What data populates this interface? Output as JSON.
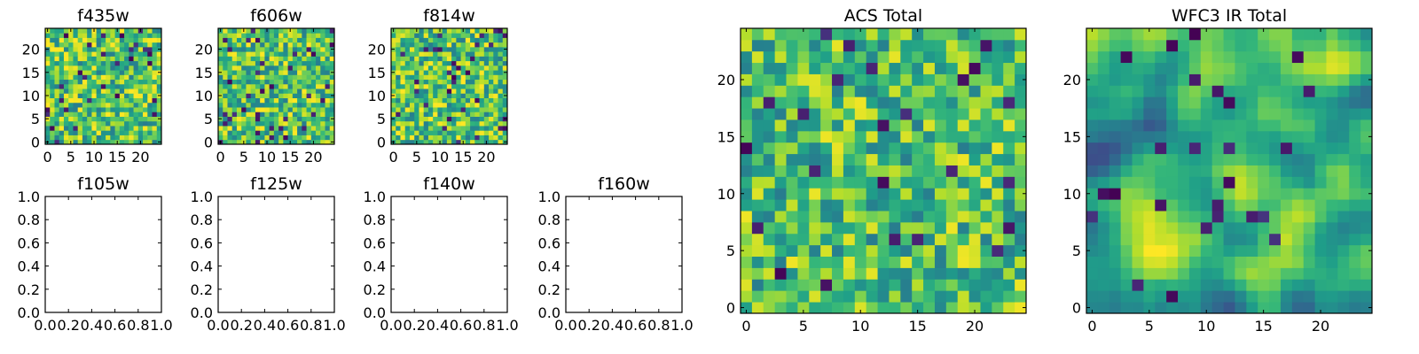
{
  "chart_data": [
    {
      "type": "heatmap",
      "title": "f435w",
      "xlim": [
        -0.5,
        24.5
      ],
      "ylim": [
        -0.5,
        24.5
      ],
      "xticks": [
        "0",
        "5",
        "10",
        "15",
        "20"
      ],
      "yticks": [
        "0",
        "5",
        "10",
        "15",
        "20"
      ],
      "colormap": "viridis",
      "seed": 11,
      "mean": 0.72,
      "spread": 0.3,
      "smooth": 0,
      "dark_fraction": 0.05
    },
    {
      "type": "heatmap",
      "title": "f606w",
      "xlim": [
        -0.5,
        24.5
      ],
      "ylim": [
        -0.5,
        24.5
      ],
      "xticks": [
        "0",
        "5",
        "10",
        "15",
        "20"
      ],
      "yticks": [
        "0",
        "5",
        "10",
        "15",
        "20"
      ],
      "colormap": "viridis",
      "seed": 23,
      "mean": 0.72,
      "spread": 0.3,
      "smooth": 0,
      "dark_fraction": 0.05
    },
    {
      "type": "heatmap",
      "title": "f814w",
      "xlim": [
        -0.5,
        24.5
      ],
      "ylim": [
        -0.5,
        24.5
      ],
      "xticks": [
        "0",
        "5",
        "10",
        "15",
        "20"
      ],
      "yticks": [
        "0",
        "5",
        "10",
        "15",
        "20"
      ],
      "colormap": "viridis",
      "seed": 37,
      "mean": 0.72,
      "spread": 0.3,
      "smooth": 0,
      "dark_fraction": 0.05
    },
    {
      "type": "line",
      "title": "f105w",
      "series": [],
      "xlim": [
        0.0,
        1.0
      ],
      "ylim": [
        0.0,
        1.0
      ],
      "xticks": [
        "0.0",
        "0.2",
        "0.4",
        "0.6",
        "0.8",
        "1.0"
      ],
      "yticks": [
        "0.0",
        "0.2",
        "0.4",
        "0.6",
        "0.8",
        "1.0"
      ]
    },
    {
      "type": "line",
      "title": "f125w",
      "series": [],
      "xlim": [
        0.0,
        1.0
      ],
      "ylim": [
        0.0,
        1.0
      ],
      "xticks": [
        "0.0",
        "0.2",
        "0.4",
        "0.6",
        "0.8",
        "1.0"
      ],
      "yticks": [
        "0.0",
        "0.2",
        "0.4",
        "0.6",
        "0.8",
        "1.0"
      ]
    },
    {
      "type": "line",
      "title": "f140w",
      "series": [],
      "xlim": [
        0.0,
        1.0
      ],
      "ylim": [
        0.0,
        1.0
      ],
      "xticks": [
        "0.0",
        "0.2",
        "0.4",
        "0.6",
        "0.8",
        "1.0"
      ],
      "yticks": [
        "0.0",
        "0.2",
        "0.4",
        "0.6",
        "0.8",
        "1.0"
      ]
    },
    {
      "type": "line",
      "title": "f160w",
      "series": [],
      "xlim": [
        0.0,
        1.0
      ],
      "ylim": [
        0.0,
        1.0
      ],
      "xticks": [
        "0.0",
        "0.2",
        "0.4",
        "0.6",
        "0.8",
        "1.0"
      ],
      "yticks": [
        "0.0",
        "0.2",
        "0.4",
        "0.6",
        "0.8",
        "1.0"
      ]
    },
    {
      "type": "heatmap",
      "title": "ACS Total",
      "xlim": [
        -0.5,
        24.5
      ],
      "ylim": [
        -0.5,
        24.5
      ],
      "xticks": [
        "0",
        "5",
        "10",
        "15",
        "20"
      ],
      "yticks": [
        "0",
        "5",
        "10",
        "15",
        "20"
      ],
      "colormap": "viridis",
      "seed": 51,
      "mean": 0.7,
      "spread": 0.28,
      "smooth": 0,
      "dark_fraction": 0.03
    },
    {
      "type": "heatmap",
      "title": "WFC3 IR Total",
      "xlim": [
        -0.5,
        24.5
      ],
      "ylim": [
        -0.5,
        24.5
      ],
      "xticks": [
        "0",
        "5",
        "10",
        "15",
        "20"
      ],
      "yticks": [
        "0",
        "5",
        "10",
        "15",
        "20"
      ],
      "colormap": "viridis",
      "seed": 67,
      "mean": 0.62,
      "spread": 0.38,
      "smooth": 2,
      "dark_fraction": 0.03
    }
  ]
}
